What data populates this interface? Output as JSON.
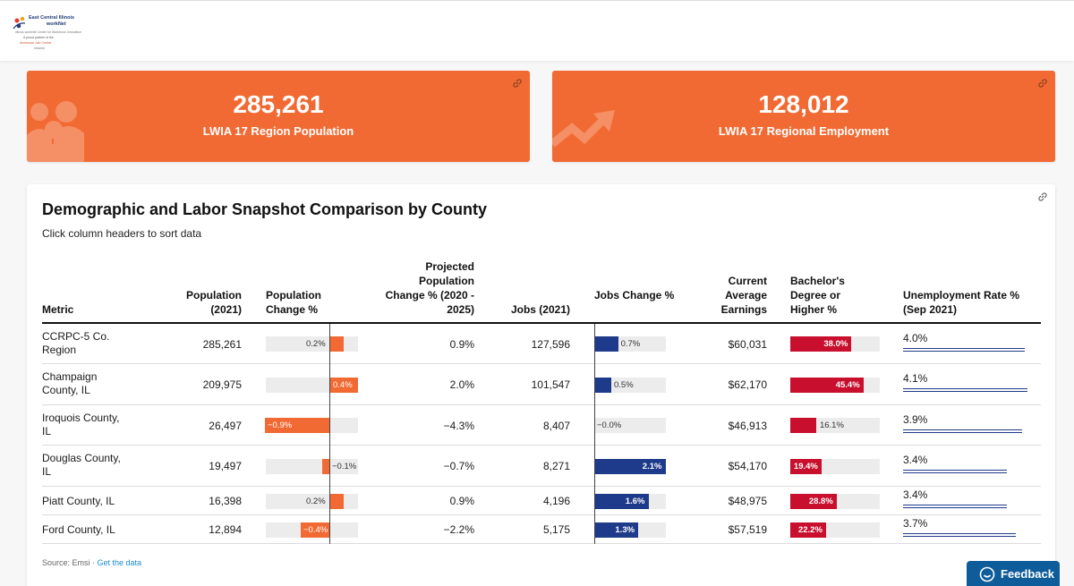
{
  "logo": {
    "line1": "East Central Illinois",
    "line2": "workNet",
    "line3": "Illinois workNet Center for Workforce Innovation",
    "line4": "A proud partner of the",
    "line5": "American Job Center",
    "line6": "network"
  },
  "kpis": [
    {
      "value": "285,261",
      "label": "LWIA 17 Region Population",
      "icon": "people-icon"
    },
    {
      "value": "128,012",
      "label": "LWIA 17 Regional Employment",
      "icon": "trend-up-arrow-icon"
    }
  ],
  "table_card": {
    "title": "Demographic and Labor Snapshot Comparison by County",
    "subtitle": "Click column headers to sort data",
    "headers": {
      "metric": "Metric",
      "population": "Population (2021)",
      "pop_change": "Population Change %",
      "projected": "Projected Population Change % (2020 - 2025)",
      "jobs": "Jobs (2021)",
      "jobs_change": "Jobs Change %",
      "earnings": "Current Average Earnings",
      "bachelors": "Bachelor's Degree or Higher %",
      "unemployment": "Unemployment Rate % (Sep 2021)"
    },
    "rows": [
      {
        "name": "CCRPC-5 Co. Region",
        "population": "285,261",
        "pop_change": 0.2,
        "pop_change_label": "0.2%",
        "projected": "0.9%",
        "jobs": "127,596",
        "jobs_change": 0.7,
        "jobs_change_label": "0.7%",
        "earnings": "$60,031",
        "bachelors": 38.0,
        "bachelors_label": "38.0%",
        "unemployment": 4.0,
        "unemployment_label": "4.0%"
      },
      {
        "name": "Champaign County, IL",
        "population": "209,975",
        "pop_change": 0.4,
        "pop_change_label": "0.4%",
        "projected": "2.0%",
        "jobs": "101,547",
        "jobs_change": 0.5,
        "jobs_change_label": "0.5%",
        "earnings": "$62,170",
        "bachelors": 45.4,
        "bachelors_label": "45.4%",
        "unemployment": 4.1,
        "unemployment_label": "4.1%"
      },
      {
        "name": "Iroquois County, IL",
        "population": "26,497",
        "pop_change": -0.9,
        "pop_change_label": "−0.9%",
        "projected": "−4.3%",
        "jobs": "8,407",
        "jobs_change": 0.0,
        "jobs_change_label": "−0.0%",
        "earnings": "$46,913",
        "bachelors": 16.1,
        "bachelors_label": "16.1%",
        "unemployment": 3.9,
        "unemployment_label": "3.9%"
      },
      {
        "name": "Douglas County, IL",
        "population": "19,497",
        "pop_change": -0.1,
        "pop_change_label": "−0.1%",
        "projected": "−0.7%",
        "jobs": "8,271",
        "jobs_change": 2.1,
        "jobs_change_label": "2.1%",
        "earnings": "$54,170",
        "bachelors": 19.4,
        "bachelors_label": "19.4%",
        "unemployment": 3.4,
        "unemployment_label": "3.4%"
      },
      {
        "name": "Piatt County, IL",
        "population": "16,398",
        "pop_change": 0.2,
        "pop_change_label": "0.2%",
        "projected": "0.9%",
        "jobs": "4,196",
        "jobs_change": 1.6,
        "jobs_change_label": "1.6%",
        "earnings": "$48,975",
        "bachelors": 28.8,
        "bachelors_label": "28.8%",
        "unemployment": 3.4,
        "unemployment_label": "3.4%"
      },
      {
        "name": "Ford County, IL",
        "population": "12,894",
        "pop_change": -0.4,
        "pop_change_label": "−0.4%",
        "projected": "−2.2%",
        "jobs": "5,175",
        "jobs_change": 1.3,
        "jobs_change_label": "1.3%",
        "earnings": "$57,519",
        "bachelors": 22.2,
        "bachelors_label": "22.2%",
        "unemployment": 3.7,
        "unemployment_label": "3.7%"
      }
    ],
    "source_prefix": "Source: Emsi · ",
    "source_link": "Get the data"
  },
  "feedback": {
    "label": "Feedback"
  },
  "colors": {
    "orange": "#f26a33",
    "navy": "#1e3a8a",
    "red": "#c8102e",
    "feedback": "#0f5c9a"
  }
}
